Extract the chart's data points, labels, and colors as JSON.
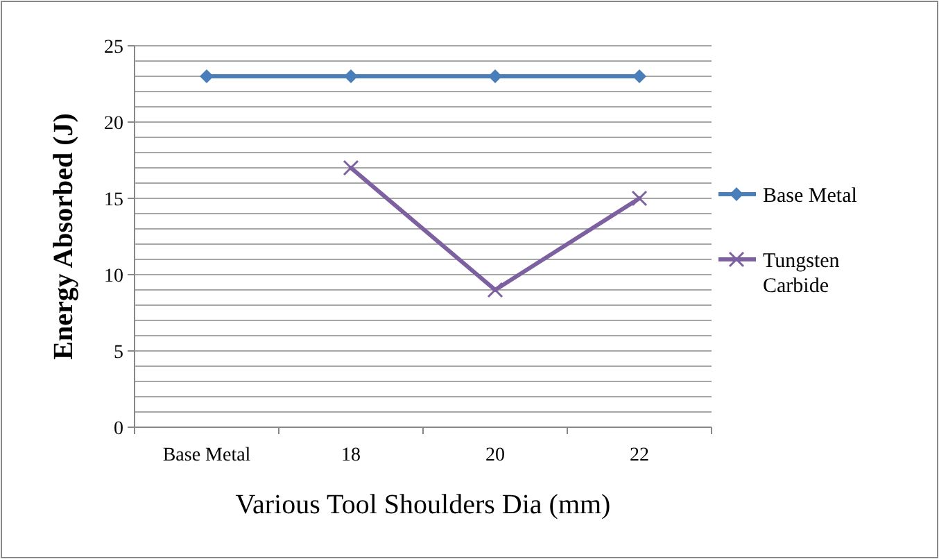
{
  "chart_data": {
    "type": "line",
    "xlabel": "Various Tool Shoulders Dia (mm)",
    "ylabel": "Energy Absorbed (J)",
    "categories": [
      "Base Metal",
      "18",
      "20",
      "22"
    ],
    "series": [
      {
        "name": "Base Metal",
        "color": "#4a7ebb",
        "marker": "diamond",
        "values": [
          23,
          23,
          23,
          23
        ]
      },
      {
        "name": "Tungsten Carbide",
        "color": "#7d60a0",
        "marker": "cross",
        "values": [
          null,
          17,
          9,
          15
        ]
      }
    ],
    "ylim": [
      0,
      25
    ],
    "yticks": [
      0,
      {
        "value": 1,
        "label": null
      },
      {
        "value": 2,
        "label": null
      },
      {
        "value": 3,
        "label": null
      },
      {
        "value": 4,
        "label": null
      },
      5,
      {
        "value": 6,
        "label": null
      },
      {
        "value": 7,
        "label": null
      },
      {
        "value": 8,
        "label": null
      },
      {
        "value": 9,
        "label": null
      },
      10,
      {
        "value": 11,
        "label": null
      },
      {
        "value": 12,
        "label": null
      },
      {
        "value": 13,
        "label": null
      },
      {
        "value": 14,
        "label": null
      },
      15,
      {
        "value": 16,
        "label": null
      },
      {
        "value": 17,
        "label": null
      },
      {
        "value": 18,
        "label": null
      },
      {
        "value": 19,
        "label": null
      },
      20,
      {
        "value": 21,
        "label": null
      },
      {
        "value": 22,
        "label": null
      },
      {
        "value": 23,
        "label": null
      },
      {
        "value": 24,
        "label": null
      },
      25
    ],
    "grid": "y",
    "legend": "right",
    "line_style": "solid"
  }
}
